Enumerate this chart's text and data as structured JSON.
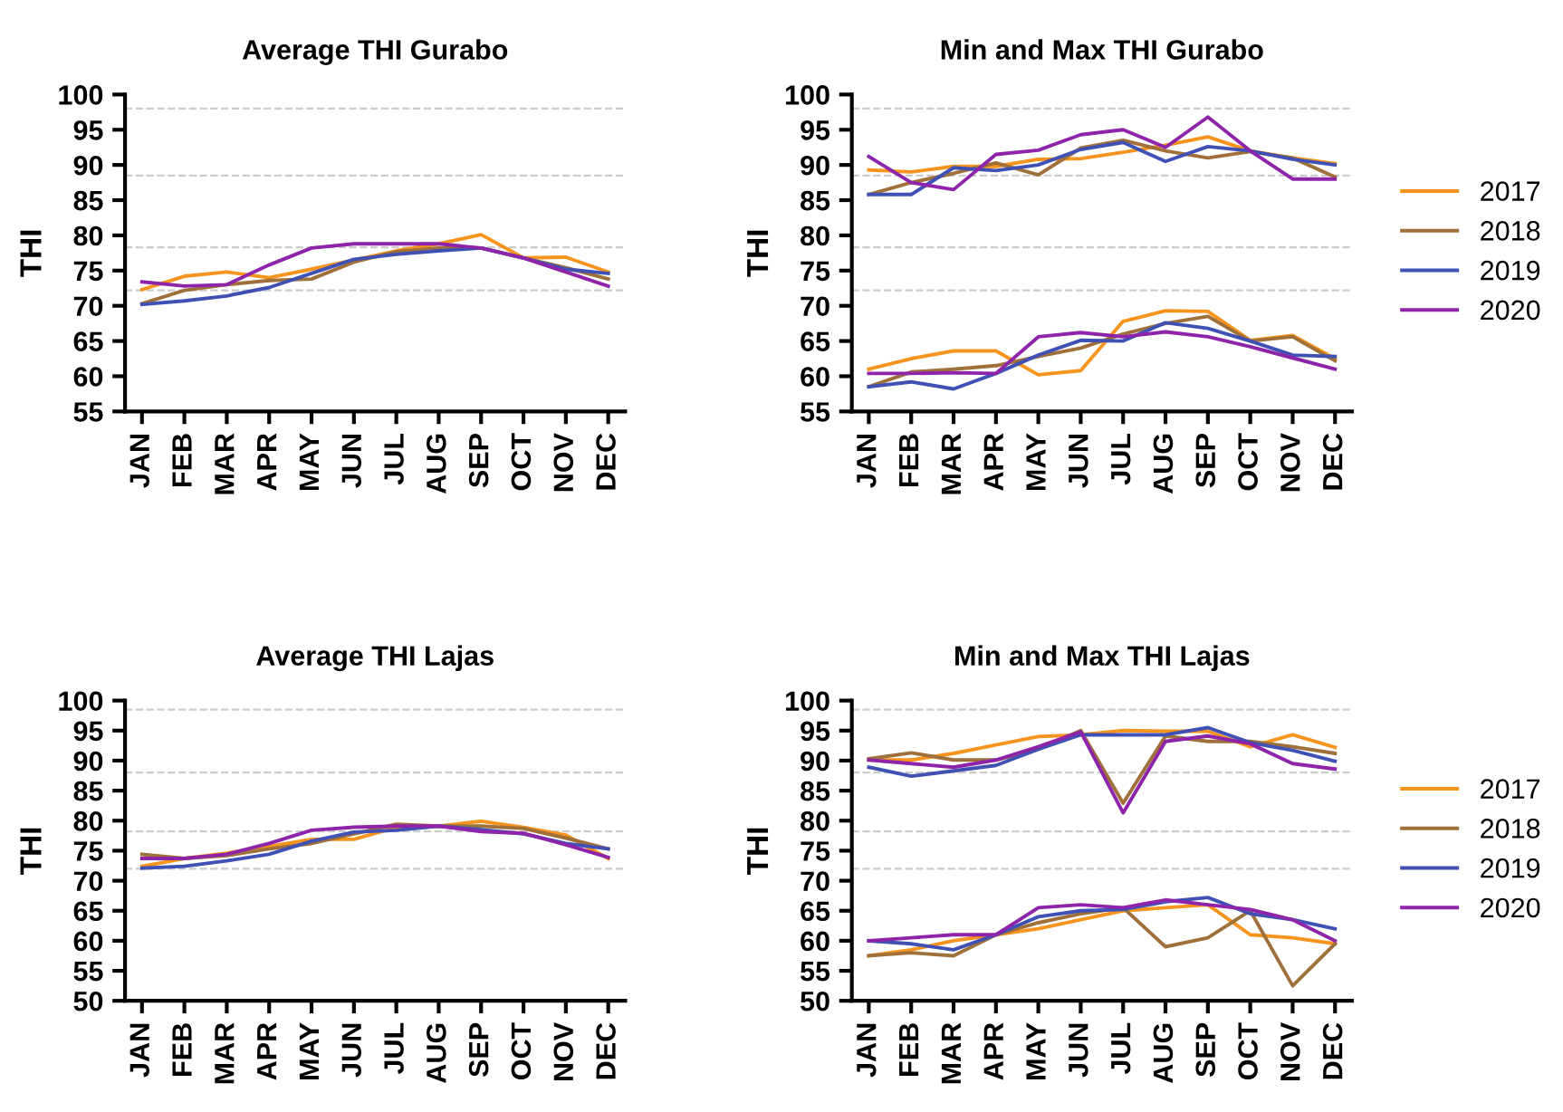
{
  "chart_data": [
    {
      "type": "line",
      "title": "Average THI Gurabo",
      "ylabel": "THI",
      "categories": [
        "JAN",
        "FEB",
        "MAR",
        "APR",
        "MAY",
        "JUN",
        "JUL",
        "AUG",
        "SEP",
        "OCT",
        "NOV",
        "DEC"
      ],
      "ylim": [
        55,
        100
      ],
      "yticks": [
        55,
        60,
        65,
        70,
        75,
        80,
        85,
        90,
        95,
        100
      ],
      "legend": false,
      "grid": false,
      "ref_lines": [
        {
          "axis": "y",
          "value": 98,
          "color": "#cccccc",
          "line_style": "dashed"
        },
        {
          "axis": "y",
          "value": 88.5,
          "color": "#cccccc",
          "line_style": "dashed"
        },
        {
          "axis": "y",
          "value": 78.3,
          "color": "#cccccc",
          "line_style": "dashed"
        },
        {
          "axis": "y",
          "value": 72.2,
          "color": "#cccccc",
          "line_style": "dashed"
        }
      ],
      "series": [
        {
          "color": "#f7941d",
          "values": [
            72.3,
            74.2,
            74.8,
            74,
            75.2,
            76.5,
            77.8,
            78.8,
            80.1,
            76.8,
            76.9,
            74.8
          ]
        },
        {
          "color": "#a0703a",
          "values": [
            70.3,
            72.2,
            73,
            73.6,
            73.8,
            76.2,
            77.7,
            78.2,
            78.2,
            76.8,
            75.4,
            73.8
          ]
        },
        {
          "color": "#3f51b5",
          "values": [
            70.2,
            70.7,
            71.4,
            72.6,
            74.6,
            76.6,
            77.3,
            77.8,
            78.2,
            76.8,
            75.2,
            74.6
          ]
        },
        {
          "color": "#8e24aa",
          "values": [
            73.4,
            72.8,
            73,
            75.8,
            78.2,
            78.8,
            78.8,
            78.8,
            78.2,
            76.8,
            74.8,
            72.8
          ]
        }
      ]
    },
    {
      "type": "line",
      "title": "Min and Max THI Gurabo",
      "ylabel": "THI",
      "categories": [
        "JAN",
        "FEB",
        "MAR",
        "APR",
        "MAY",
        "JUN",
        "JUL",
        "AUG",
        "SEP",
        "OCT",
        "NOV",
        "DEC"
      ],
      "ylim": [
        55,
        100
      ],
      "yticks": [
        55,
        60,
        65,
        70,
        75,
        80,
        85,
        90,
        95,
        100
      ],
      "legend": "right",
      "grid": false,
      "ref_lines": [
        {
          "axis": "y",
          "value": 98,
          "color": "#cccccc",
          "line_style": "dashed"
        },
        {
          "axis": "y",
          "value": 88.5,
          "color": "#cccccc",
          "line_style": "dashed"
        },
        {
          "axis": "y",
          "value": 78.3,
          "color": "#cccccc",
          "line_style": "dashed"
        },
        {
          "axis": "y",
          "value": 72.2,
          "color": "#cccccc",
          "line_style": "dashed"
        }
      ],
      "series": [
        {
          "name": "2017",
          "color": "#f7941d",
          "values": [
            89.3,
            89,
            89.8,
            89.8,
            90.8,
            90.9,
            91.8,
            92.8,
            94,
            92,
            91,
            90.2
          ]
        },
        {
          "name": "2018",
          "color": "#a0703a",
          "values": [
            85.8,
            87.5,
            88.8,
            90.3,
            88.6,
            92.4,
            93.5,
            92,
            91,
            91.9,
            91,
            88.3
          ]
        },
        {
          "name": "2019",
          "color": "#3f51b5",
          "values": [
            85.8,
            85.8,
            89.6,
            89.2,
            90,
            92.2,
            93.2,
            90.5,
            92.6,
            92,
            90.8,
            90
          ]
        },
        {
          "name": "2020",
          "color": "#8e24aa",
          "values": [
            91.2,
            87.5,
            86.5,
            91.5,
            92.1,
            94.3,
            95,
            92.5,
            96.8,
            92,
            88,
            88
          ]
        },
        {
          "color": "#f7941d",
          "values": [
            61,
            62.5,
            63.6,
            63.6,
            60.2,
            60.8,
            67.8,
            69.3,
            69.2,
            65.1,
            65.8,
            62.5
          ]
        },
        {
          "color": "#a0703a",
          "values": [
            58.5,
            60.6,
            61,
            61.5,
            62.8,
            64,
            66,
            67.5,
            68.5,
            65,
            65.6,
            62.2
          ]
        },
        {
          "color": "#3f51b5",
          "values": [
            58.5,
            59.2,
            58.2,
            60.4,
            63,
            65.1,
            65,
            67.6,
            66.8,
            65,
            63,
            62.8
          ]
        },
        {
          "color": "#8e24aa",
          "values": [
            60.4,
            60.4,
            60.5,
            60.4,
            65.6,
            66.2,
            65.6,
            66.3,
            65.6,
            64.2,
            62.6,
            61
          ]
        }
      ]
    },
    {
      "type": "line",
      "title": "Average THI Lajas",
      "ylabel": "THI",
      "categories": [
        "JAN",
        "FEB",
        "MAR",
        "APR",
        "MAY",
        "JUN",
        "JUL",
        "AUG",
        "SEP",
        "OCT",
        "NOV",
        "DEC"
      ],
      "ylim": [
        50,
        100
      ],
      "yticks": [
        50,
        55,
        60,
        65,
        70,
        75,
        80,
        85,
        90,
        95,
        100
      ],
      "legend": false,
      "grid": false,
      "ref_lines": [
        {
          "axis": "y",
          "value": 98.5,
          "color": "#cccccc",
          "line_style": "dashed"
        },
        {
          "axis": "y",
          "value": 88,
          "color": "#cccccc",
          "line_style": "dashed"
        },
        {
          "axis": "y",
          "value": 78.2,
          "color": "#cccccc",
          "line_style": "dashed"
        },
        {
          "axis": "y",
          "value": 72,
          "color": "#cccccc",
          "line_style": "dashed"
        }
      ],
      "series": [
        {
          "color": "#f7941d",
          "values": [
            72.4,
            73.7,
            74.6,
            75.7,
            76.9,
            76.9,
            78.9,
            79.1,
            79.9,
            78.9,
            77.6,
            73.7
          ]
        },
        {
          "color": "#a0703a",
          "values": [
            74.4,
            73.7,
            74.2,
            75.3,
            76.2,
            77.8,
            79.4,
            79.1,
            79.1,
            78.7,
            77.1,
            75.3
          ]
        },
        {
          "color": "#3f51b5",
          "values": [
            72.1,
            72.4,
            73.3,
            74.4,
            76.6,
            78.1,
            78.4,
            79.1,
            78.5,
            77.8,
            76.2,
            75.3
          ]
        },
        {
          "color": "#8e24aa",
          "values": [
            73.7,
            73.7,
            74.4,
            76.2,
            78.4,
            78.9,
            79.1,
            79.1,
            78.2,
            77.9,
            76,
            73.9
          ]
        }
      ]
    },
    {
      "type": "line",
      "title": "Min and Max THI Lajas",
      "ylabel": "THI",
      "categories": [
        "JAN",
        "FEB",
        "MAR",
        "APR",
        "MAY",
        "JUN",
        "JUL",
        "AUG",
        "SEP",
        "OCT",
        "NOV",
        "DEC"
      ],
      "ylim": [
        50,
        100
      ],
      "yticks": [
        50,
        55,
        60,
        65,
        70,
        75,
        80,
        85,
        90,
        95,
        100
      ],
      "legend": "right",
      "grid": false,
      "ref_lines": [
        {
          "axis": "y",
          "value": 98.5,
          "color": "#cccccc",
          "line_style": "dashed"
        },
        {
          "axis": "y",
          "value": 88,
          "color": "#cccccc",
          "line_style": "dashed"
        },
        {
          "axis": "y",
          "value": 78.2,
          "color": "#cccccc",
          "line_style": "dashed"
        },
        {
          "axis": "y",
          "value": 72,
          "color": "#cccccc",
          "line_style": "dashed"
        }
      ],
      "series": [
        {
          "name": "2017",
          "color": "#f7941d",
          "values": [
            90.1,
            90.1,
            91.2,
            92.6,
            94,
            94.3,
            95,
            94.9,
            94.9,
            92.3,
            94.3,
            92.2
          ]
        },
        {
          "name": "2018",
          "color": "#a0703a",
          "values": [
            90.3,
            91.3,
            90.1,
            90.1,
            91.9,
            95,
            82.9,
            94.1,
            93.2,
            93.2,
            92.3,
            91.2
          ]
        },
        {
          "name": "2019",
          "color": "#3f51b5",
          "values": [
            88.9,
            87.4,
            88.3,
            89.2,
            91.9,
            94.3,
            94.3,
            94.3,
            95.5,
            93,
            91.7,
            89.9
          ]
        },
        {
          "name": "2020",
          "color": "#8e24aa",
          "values": [
            90.1,
            89.5,
            88.9,
            90.1,
            92.3,
            94.8,
            81.3,
            93.2,
            94.1,
            92.8,
            89.5,
            88.6
          ]
        },
        {
          "color": "#f7941d",
          "values": [
            57.5,
            58.5,
            60,
            61,
            62,
            63.5,
            65,
            65.5,
            66,
            61,
            60.5,
            59.5
          ]
        },
        {
          "color": "#a0703a",
          "values": [
            57.5,
            58,
            57.5,
            61,
            63,
            64.5,
            65.5,
            59,
            60.5,
            65,
            52.5,
            59.5
          ]
        },
        {
          "color": "#3f51b5",
          "values": [
            60,
            59.5,
            58.5,
            61,
            64,
            65,
            65.2,
            66.5,
            67.2,
            64.5,
            63.5,
            62
          ]
        },
        {
          "color": "#8e24aa",
          "values": [
            60,
            60.5,
            61,
            61,
            65.5,
            66,
            65.5,
            66.8,
            66,
            65.2,
            63.5,
            60
          ]
        }
      ]
    }
  ]
}
